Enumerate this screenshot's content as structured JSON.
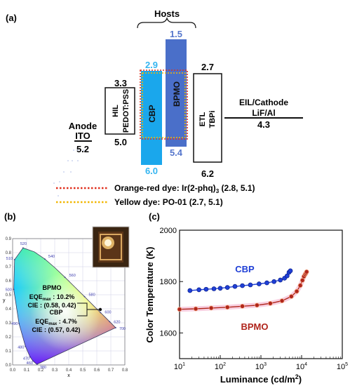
{
  "panel_a": {
    "label": "(a)",
    "hosts_label": "Hosts",
    "anode": {
      "title": "Anode",
      "material": "ITO",
      "level": "5.2"
    },
    "hil": {
      "title": "HIL",
      "material": "PEDOT:PSS",
      "lumo": "3.3",
      "homo": "5.0"
    },
    "cbp": {
      "name": "CBP",
      "lumo": "2.9",
      "homo": "6.0"
    },
    "bpmo": {
      "name": "BPMO",
      "lumo": "1.5",
      "homo": "5.4"
    },
    "etl": {
      "title": "ETL",
      "material": "TBPi",
      "lumo": "2.7",
      "homo": "6.2"
    },
    "cathode": {
      "title": "EIL/Cathode",
      "material": "LiF/Al",
      "level": "4.3"
    },
    "legend": [
      {
        "prefix": "Orange-red dye: Ir(2-phq)",
        "sub": "3",
        "suffix": " (2.8, 5.1)",
        "color": "#e0301e"
      },
      {
        "prefix": "Yellow dye: PO-01 (2.7, 5.1)",
        "sub": "",
        "suffix": "",
        "color": "#f2b705"
      }
    ],
    "colors": {
      "cbp": "#1aa7ec",
      "bpmo": "#4a6fc9",
      "cbp_text": "#35b5f0",
      "bpmo_text": "#5576cc"
    }
  },
  "panel_b": {
    "label": "(b)",
    "x_axis_title": "x",
    "y_axis_title": "y",
    "x_ticks": [
      "0.0",
      "0.1",
      "0.2",
      "0.3",
      "0.4",
      "0.5",
      "0.6",
      "0.7",
      "0.8"
    ],
    "y_ticks": [
      "0.0",
      "0.1",
      "0.2",
      "0.3",
      "0.4",
      "0.5",
      "0.6",
      "0.7",
      "0.8",
      "0.9"
    ],
    "wavelengths": [
      "380",
      "460",
      "470",
      "480",
      "490",
      "500",
      "510",
      "520",
      "540",
      "560",
      "580",
      "600",
      "620",
      "700"
    ],
    "bpmo_annot": {
      "name": "BPMO",
      "eqe_prefix": "EQE",
      "eqe_sub": "max",
      "eqe_suffix": " : 10.2%",
      "cie": "CIE : (0.58, 0.42)"
    },
    "cbp_annot": {
      "name": "CBP",
      "eqe_prefix": "EQE",
      "eqe_sub": "max",
      "eqe_suffix": " : 4.7%",
      "cie": "CIE : (0.57, 0.42)"
    }
  },
  "chart_data": {
    "type": "scatter",
    "label": "(c)",
    "xlabel": "Luminance (cd/m²)",
    "ylabel": "Color Temperature (K)",
    "x_scale": "log",
    "xlim": [
      10,
      100000
    ],
    "ylim": [
      1500,
      2000
    ],
    "y_ticks": [
      "1600",
      "1800",
      "2000"
    ],
    "x_ticks": [
      {
        "base": "10",
        "exp": "1"
      },
      {
        "base": "10",
        "exp": "2"
      },
      {
        "base": "10",
        "exp": "3"
      },
      {
        "base": "10",
        "exp": "4"
      },
      {
        "base": "10",
        "exp": "5"
      }
    ],
    "series": [
      {
        "name": "CBP",
        "color": "#1f3fd6",
        "x": [
          18,
          30,
          45,
          70,
          100,
          150,
          230,
          350,
          550,
          900,
          1400,
          2100,
          3000,
          3800,
          4400,
          4900,
          5300
        ],
        "y": [
          1765,
          1768,
          1770,
          1772,
          1774,
          1777,
          1781,
          1784,
          1787,
          1791,
          1795,
          1800,
          1806,
          1813,
          1822,
          1836,
          1842
        ]
      },
      {
        "name": "BPMO",
        "color": "#b0251c",
        "x": [
          10,
          25,
          60,
          150,
          350,
          800,
          1700,
          3300,
          5600,
          7600,
          9300,
          10500,
          11400,
          12200,
          12800,
          13300
        ],
        "y": [
          1692,
          1694,
          1697,
          1700,
          1704,
          1708,
          1715,
          1725,
          1742,
          1762,
          1785,
          1805,
          1820,
          1828,
          1833,
          1838
        ]
      }
    ]
  }
}
